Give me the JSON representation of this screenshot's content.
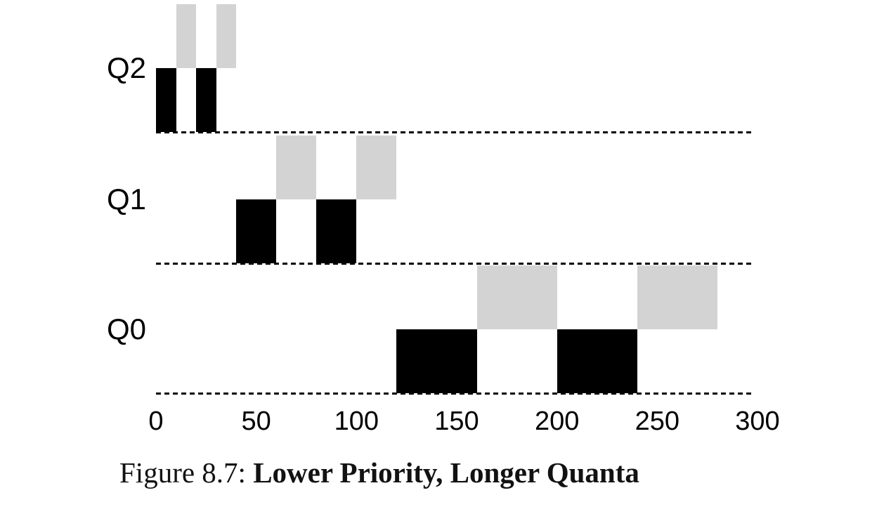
{
  "caption": {
    "prefix": "Figure 8.7:",
    "title": "Lower Priority, Longer Quanta"
  },
  "chart_data": {
    "type": "gantt",
    "title": "Figure 8.7: Lower Priority, Longer Quanta",
    "xlim": [
      0,
      300
    ],
    "x_ticks": [
      0,
      50,
      100,
      150,
      200,
      250,
      300
    ],
    "grid": "dashed horizontal baseline per queue row",
    "legend": "none (jobs distinguished by color: black job drawn on baseline, gray job drawn one level raised)",
    "colors": {
      "black_job": "#000000",
      "gray_job": "#d3d3d3"
    },
    "queues": [
      {
        "label": "Q2",
        "quantum": 10,
        "segments": [
          {
            "job": "black",
            "start": 0,
            "end": 10
          },
          {
            "job": "gray",
            "start": 10,
            "end": 20
          },
          {
            "job": "black",
            "start": 20,
            "end": 30
          },
          {
            "job": "gray",
            "start": 30,
            "end": 40
          }
        ]
      },
      {
        "label": "Q1",
        "quantum": 20,
        "segments": [
          {
            "job": "black",
            "start": 40,
            "end": 60
          },
          {
            "job": "gray",
            "start": 60,
            "end": 80
          },
          {
            "job": "black",
            "start": 80,
            "end": 100
          },
          {
            "job": "gray",
            "start": 100,
            "end": 120
          }
        ]
      },
      {
        "label": "Q0",
        "quantum": 40,
        "segments": [
          {
            "job": "black",
            "start": 120,
            "end": 160
          },
          {
            "job": "gray",
            "start": 160,
            "end": 200
          },
          {
            "job": "black",
            "start": 200,
            "end": 240
          },
          {
            "job": "gray",
            "start": 240,
            "end": 280
          }
        ]
      }
    ]
  }
}
